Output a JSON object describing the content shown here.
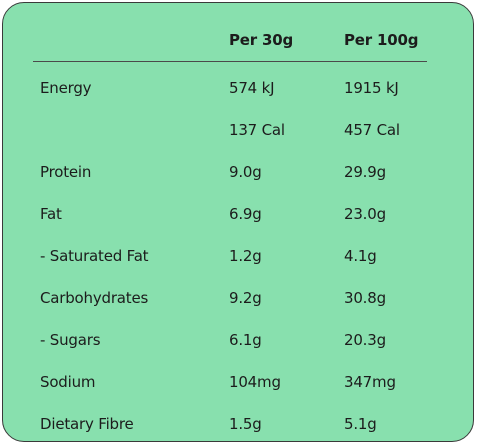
{
  "header": {
    "col1": "Per 30g",
    "col2": "Per 100g"
  },
  "rows": [
    {
      "name": "Energy",
      "per30": "574 kJ",
      "per100": "1915 kJ"
    },
    {
      "name": "",
      "per30": "137 Cal",
      "per100": "457 Cal"
    },
    {
      "name": "Protein",
      "per30": "9.0g",
      "per100": "29.9g"
    },
    {
      "name": "Fat",
      "per30": "6.9g",
      "per100": "23.0g"
    },
    {
      "name": "- Saturated Fat",
      "per30": "1.2g",
      "per100": "4.1g"
    },
    {
      "name": "Carbohydrates",
      "per30": "9.2g",
      "per100": "30.8g"
    },
    {
      "name": "- Sugars",
      "per30": "6.1g",
      "per100": "20.3g"
    },
    {
      "name": "Sodium",
      "per30": "104mg",
      "per100": "347mg"
    },
    {
      "name": "Dietary Fibre",
      "per30": "1.5g",
      "per100": "5.1g"
    }
  ],
  "colors": {
    "background": "#88e0ae",
    "border": "#3a3a3a",
    "text": "#1c1c1c"
  }
}
